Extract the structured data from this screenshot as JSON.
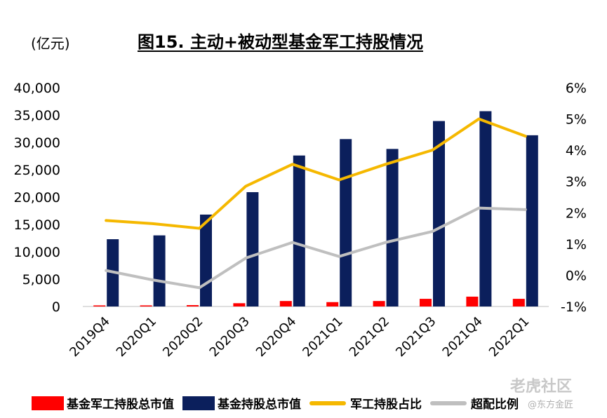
{
  "title": "图15. 主动+被动型基金军工持股情况",
  "unit_label": "(亿元)",
  "watermark": {
    "brand": "老虎社区",
    "handle": "@东方金匠"
  },
  "chart_data": {
    "type": "bar",
    "categories": [
      "2019Q4",
      "2020Q1",
      "2020Q2",
      "2020Q3",
      "2020Q4",
      "2021Q1",
      "2021Q2",
      "2021Q3",
      "2021Q4",
      "2022Q1"
    ],
    "y_left": {
      "ylim": [
        0,
        40000
      ],
      "ticks": [
        "0",
        "5,000",
        "10,000",
        "15,000",
        "20,000",
        "25,000",
        "30,000",
        "35,000",
        "40,000"
      ]
    },
    "y_right": {
      "ylim": [
        -1,
        6
      ],
      "ticks": [
        "-1%",
        "0%",
        "1%",
        "2%",
        "3%",
        "4%",
        "5%",
        "6%"
      ]
    },
    "grid": false,
    "legend_position": "bottom",
    "series": [
      {
        "name": "基金军工持股总市值",
        "type": "bar",
        "axis": "left",
        "color": "#ff0000",
        "values": [
          200,
          200,
          250,
          600,
          1000,
          800,
          1000,
          1400,
          1800,
          1400
        ]
      },
      {
        "name": "基金持股总市值",
        "type": "bar",
        "axis": "left",
        "color": "#0b1f5c",
        "values": [
          12300,
          13000,
          16800,
          20900,
          27600,
          30600,
          28800,
          33900,
          35700,
          31300
        ]
      },
      {
        "name": "军工持股占比",
        "type": "line",
        "axis": "right",
        "color": "#f5b800",
        "values": [
          1.75,
          1.65,
          1.5,
          2.85,
          3.55,
          3.05,
          3.55,
          4.0,
          5.0,
          4.45
        ]
      },
      {
        "name": "超配比例",
        "type": "line",
        "axis": "right",
        "color": "#bfbfbf",
        "values": [
          0.15,
          -0.15,
          -0.4,
          0.55,
          1.05,
          0.6,
          1.05,
          1.4,
          2.15,
          2.1
        ]
      }
    ]
  }
}
